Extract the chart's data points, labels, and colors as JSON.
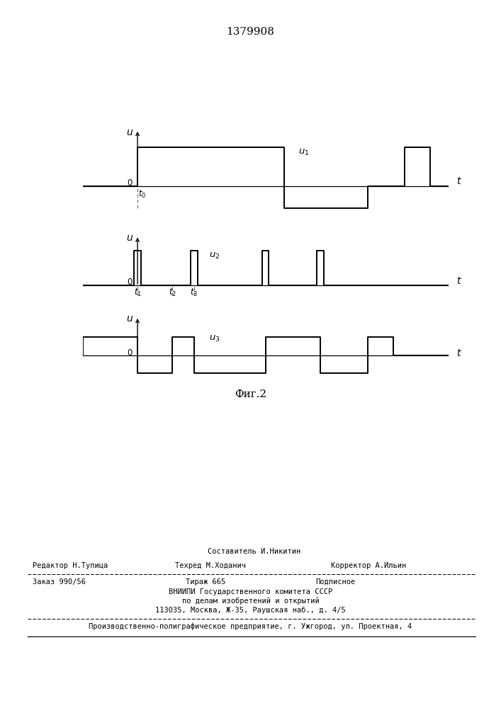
{
  "title": "1379908",
  "fig_label": "Фиг.2",
  "background_color": "#ffffff",
  "line_color": "#000000",
  "dashed_color": "#666666",
  "waveform1_label": "u_1",
  "waveform2_label": "u_2",
  "waveform3_label": "u_3",
  "footer_editor": "Редактор Н.Тупица",
  "footer_composer": "Составитель И.Никитин",
  "footer_techred": "Техред М.Ходанич",
  "footer_corrector": "Корректор А.Ильин",
  "footer_order": "Заказ 990/56",
  "footer_tirazh": "Тираж 665",
  "footer_podpisnoe": "Подписное",
  "footer_vniiipi": "ВНИИПИ Государственного комитета СССР",
  "footer_po_delam": "по делам изобретений и открытий",
  "footer_address": "113035, Москва, Ж-35, Раушская наб., д. 4/5",
  "footer_last": "Производственно-полиграфическое предприятие, г. Ужгород, ул. Проектная, 4"
}
